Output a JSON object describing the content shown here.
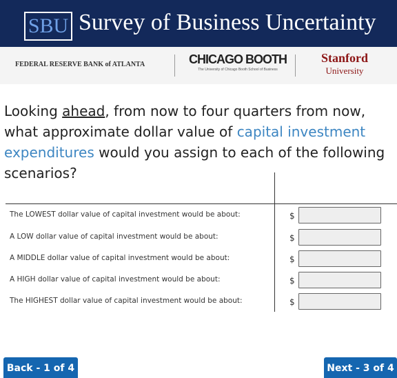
{
  "header": {
    "badge": "SBU",
    "title": "Survey of Business Uncertainty"
  },
  "logos": {
    "atlanta": "FEDERAL RESERVE BANK of ATLANTA",
    "booth": "CHICAGO BOOTH",
    "booth_sub": "The University of Chicago Booth School of Business",
    "stanford": "Stanford",
    "stanford_sub": "University"
  },
  "question": {
    "before": "Looking ",
    "underlined": "ahead",
    "middle": ", from now to four quarters from now, what approximate dollar value of ",
    "highlight": "capital investment expenditures",
    "after": " would you assign to each of the following scenarios?"
  },
  "table": {
    "currency": "$",
    "rows": [
      "The LOWEST dollar value of capital investment would be about:",
      "A LOW dollar value of capital investment would be about:",
      "A MIDDLE dollar value of capital investment would be about:",
      "A HIGH dollar value of capital investment would be about:",
      "The HIGHEST dollar value of capital investment would be about:"
    ]
  },
  "buttons": {
    "back": "Back - 1 of 4",
    "next": "Next - 3 of 4"
  }
}
